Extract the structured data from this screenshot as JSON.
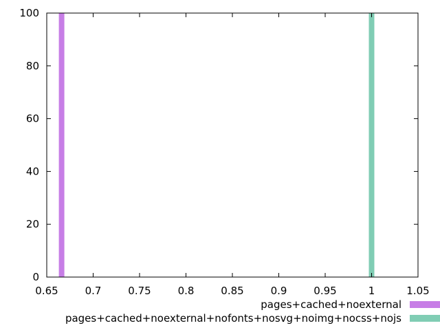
{
  "chart_data": {
    "type": "bar",
    "title": "",
    "xlabel": "",
    "ylabel": "",
    "xlim": [
      0.65,
      1.05
    ],
    "ylim": [
      0,
      100
    ],
    "x_ticks": [
      "0.65",
      "0.7",
      "0.75",
      "0.8",
      "0.85",
      "0.9",
      "0.95",
      "1",
      "1.05"
    ],
    "y_ticks": [
      "0",
      "20",
      "40",
      "60",
      "80",
      "100"
    ],
    "grid": false,
    "legend_position": "bottom-right, below plot",
    "series": [
      {
        "name": "pages+cached+noexternal",
        "color": "#c77ee6",
        "x": [
          0.666
        ],
        "values": [
          100
        ]
      },
      {
        "name": "pages+cached+noexternal+nofonts+nosvg+noimg+nocss+nojs",
        "color": "#80cdb4",
        "x": [
          1.0
        ],
        "values": [
          100
        ]
      }
    ]
  }
}
